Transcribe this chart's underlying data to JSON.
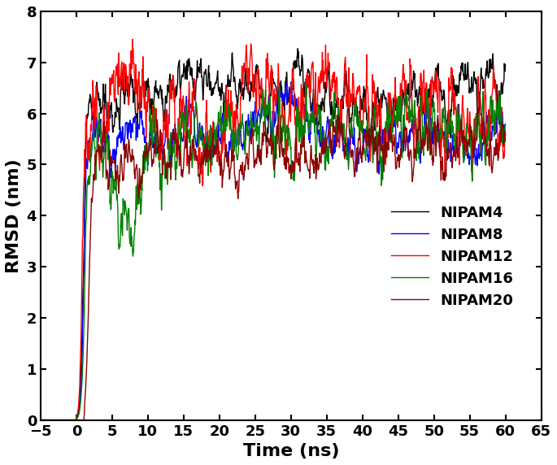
{
  "title": "",
  "xlabel": "Time (ns)",
  "ylabel": "RMSD (nm)",
  "xlim": [
    -5,
    65
  ],
  "ylim": [
    0,
    8
  ],
  "xticks": [
    -5,
    0,
    5,
    10,
    15,
    20,
    25,
    30,
    35,
    40,
    45,
    50,
    55,
    60,
    65
  ],
  "yticks": [
    0,
    1,
    2,
    3,
    4,
    5,
    6,
    7,
    8
  ],
  "series": [
    {
      "label": "NIPAM4",
      "color": "#000000",
      "lw": 1.0
    },
    {
      "label": "NIPAM8",
      "color": "#0000FF",
      "lw": 1.0
    },
    {
      "label": "NIPAM12",
      "color": "#FF0000",
      "lw": 1.0
    },
    {
      "label": "NIPAM16",
      "color": "#008000",
      "lw": 1.0
    },
    {
      "label": "NIPAM20",
      "color": "#8B0000",
      "lw": 1.0
    }
  ],
  "legend_font_size": 13,
  "label_font_size": 16,
  "tick_font_size": 13
}
